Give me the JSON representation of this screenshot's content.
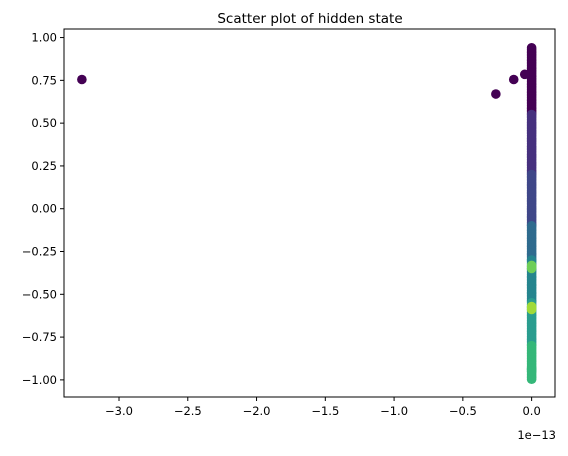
{
  "chart_data": {
    "type": "scatter",
    "title": "Scatter plot of hidden state",
    "xlabel": "",
    "ylabel": "",
    "x_offset_label": "1e−13",
    "xlim": [
      -3.4,
      0.17
    ],
    "ylim": [
      -1.1,
      1.05
    ],
    "x_ticks": [
      -3.0,
      -2.5,
      -2.0,
      -1.5,
      -1.0,
      -0.5,
      0.0
    ],
    "x_tick_labels": [
      "−3.0",
      "−2.5",
      "−2.0",
      "−1.5",
      "−1.0",
      "−0.5",
      "0.0"
    ],
    "y_ticks": [
      1.0,
      0.75,
      0.5,
      0.25,
      0.0,
      -0.25,
      -0.5,
      -0.75,
      -1.0
    ],
    "y_tick_labels": [
      "1.00",
      "0.75",
      "0.50",
      "0.25",
      "0.00",
      "−0.25",
      "−0.50",
      "−0.75",
      "−1.00"
    ],
    "grid": false,
    "legend": "none",
    "colormap": "viridis",
    "outliers": [
      {
        "x": -3.27,
        "y": 0.755,
        "color": "#440154"
      },
      {
        "x": -0.26,
        "y": 0.67,
        "color": "#440154"
      },
      {
        "x": -0.13,
        "y": 0.755,
        "color": "#440154"
      },
      {
        "x": -0.05,
        "y": 0.785,
        "color": "#440154"
      }
    ],
    "cluster": {
      "x": 0.0,
      "y_range": [
        -1.0,
        0.94
      ],
      "bands": [
        {
          "from": 0.94,
          "to": 0.55,
          "color": "#440154"
        },
        {
          "from": 0.55,
          "to": 0.2,
          "color": "#46307e"
        },
        {
          "from": 0.2,
          "to": -0.1,
          "color": "#3f4788"
        },
        {
          "from": -0.1,
          "to": -0.3,
          "color": "#2f6b8e"
        },
        {
          "from": -0.3,
          "to": -0.55,
          "color": "#25858e"
        },
        {
          "from": -0.55,
          "to": -0.8,
          "color": "#2a9d8f"
        },
        {
          "from": -0.8,
          "to": -1.0,
          "color": "#35b779"
        }
      ],
      "highlights": [
        {
          "y": -0.34,
          "color": "#6ece58"
        },
        {
          "y": -0.58,
          "color": "#a0da39"
        },
        {
          "y": -0.94,
          "color": "#35b779"
        }
      ]
    }
  }
}
